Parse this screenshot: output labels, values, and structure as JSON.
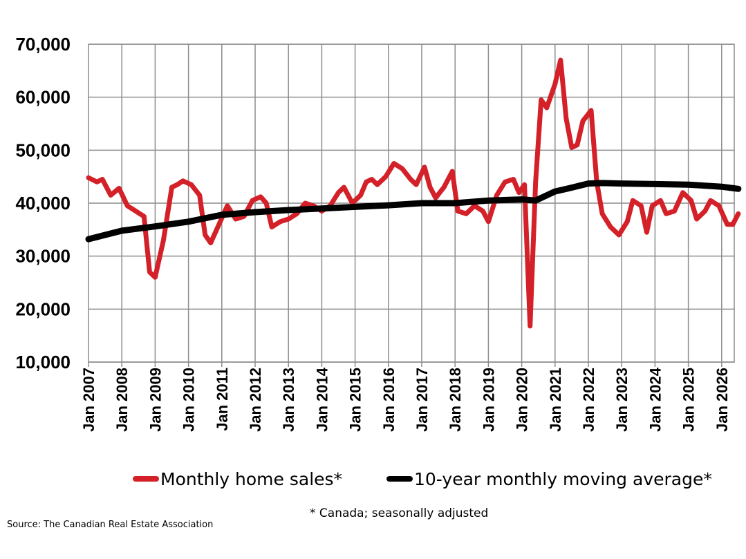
{
  "chart_data": {
    "type": "line",
    "title": "",
    "xlabel": "",
    "ylabel": "",
    "ylim": [
      10000,
      70000
    ],
    "y_ticks": [
      "10,000",
      "20,000",
      "30,000",
      "40,000",
      "50,000",
      "60,000",
      "70,000"
    ],
    "x_ticks": [
      "Jan 2007",
      "Jan 2008",
      "Jan 2009",
      "Jan 2010",
      "Jan 2011",
      "Jan 2012",
      "Jan 2013",
      "Jan 2014",
      "Jan 2015",
      "Jan 2016",
      "Jan 2017",
      "Jan 2018",
      "Jan 2019",
      "Jan 2020",
      "Jan 2021",
      "Jan 2022",
      "Jan 2023",
      "Jan 2024",
      "Jan 2025",
      "Jan 2026"
    ],
    "grid": true,
    "legend_position": "bottom",
    "series": [
      {
        "name": "Monthly home sales*",
        "color": "#d42028",
        "points": [
          [
            "2007-01",
            44800
          ],
          [
            "2007-04",
            44000
          ],
          [
            "2007-06",
            44500
          ],
          [
            "2007-09",
            41500
          ],
          [
            "2007-12",
            42800
          ],
          [
            "2008-03",
            39500
          ],
          [
            "2008-06",
            38500
          ],
          [
            "2008-09",
            37500
          ],
          [
            "2008-11",
            27000
          ],
          [
            "2009-01",
            26000
          ],
          [
            "2009-04",
            33000
          ],
          [
            "2009-07",
            43000
          ],
          [
            "2009-09",
            43500
          ],
          [
            "2009-11",
            44200
          ],
          [
            "2010-02",
            43500
          ],
          [
            "2010-05",
            41500
          ],
          [
            "2010-07",
            34000
          ],
          [
            "2010-09",
            32500
          ],
          [
            "2010-12",
            36000
          ],
          [
            "2011-03",
            39500
          ],
          [
            "2011-06",
            37000
          ],
          [
            "2011-09",
            37500
          ],
          [
            "2011-12",
            40500
          ],
          [
            "2012-03",
            41200
          ],
          [
            "2012-05",
            40000
          ],
          [
            "2012-07",
            35500
          ],
          [
            "2012-10",
            36500
          ],
          [
            "2013-01",
            37000
          ],
          [
            "2013-04",
            38000
          ],
          [
            "2013-07",
            40000
          ],
          [
            "2013-10",
            39500
          ],
          [
            "2014-01",
            38500
          ],
          [
            "2014-04",
            39500
          ],
          [
            "2014-07",
            42000
          ],
          [
            "2014-09",
            43000
          ],
          [
            "2014-12",
            40000
          ],
          [
            "2015-03",
            41500
          ],
          [
            "2015-05",
            44000
          ],
          [
            "2015-07",
            44500
          ],
          [
            "2015-09",
            43500
          ],
          [
            "2015-12",
            45000
          ],
          [
            "2016-03",
            47500
          ],
          [
            "2016-06",
            46500
          ],
          [
            "2016-09",
            44500
          ],
          [
            "2016-11",
            43500
          ],
          [
            "2017-02",
            46800
          ],
          [
            "2017-04",
            43000
          ],
          [
            "2017-06",
            41000
          ],
          [
            "2017-09",
            43000
          ],
          [
            "2017-12",
            46000
          ],
          [
            "2018-02",
            38500
          ],
          [
            "2018-05",
            38000
          ],
          [
            "2018-08",
            39500
          ],
          [
            "2018-11",
            38500
          ],
          [
            "2019-01",
            36500
          ],
          [
            "2019-04",
            41500
          ],
          [
            "2019-07",
            44000
          ],
          [
            "2019-10",
            44500
          ],
          [
            "2019-12",
            42000
          ],
          [
            "2020-02",
            43500
          ],
          [
            "2020-04",
            16800
          ],
          [
            "2020-06",
            44000
          ],
          [
            "2020-08",
            59500
          ],
          [
            "2020-10",
            58000
          ],
          [
            "2021-01",
            62500
          ],
          [
            "2021-03",
            67000
          ],
          [
            "2021-05",
            56000
          ],
          [
            "2021-07",
            50500
          ],
          [
            "2021-09",
            51000
          ],
          [
            "2021-11",
            55500
          ],
          [
            "2022-02",
            57500
          ],
          [
            "2022-04",
            44000
          ],
          [
            "2022-06",
            38000
          ],
          [
            "2022-09",
            35500
          ],
          [
            "2022-12",
            34000
          ],
          [
            "2023-03",
            36500
          ],
          [
            "2023-05",
            40500
          ],
          [
            "2023-08",
            39500
          ],
          [
            "2023-10",
            34500
          ],
          [
            "2023-12",
            39500
          ],
          [
            "2024-03",
            40500
          ],
          [
            "2024-05",
            38000
          ],
          [
            "2024-08",
            38500
          ],
          [
            "2024-11",
            42000
          ],
          [
            "2025-02",
            40500
          ],
          [
            "2025-04",
            37000
          ],
          [
            "2025-07",
            38500
          ],
          [
            "2025-09",
            40500
          ],
          [
            "2025-12",
            39500
          ],
          [
            "2026-03",
            36000
          ],
          [
            "2026-05",
            36000
          ],
          [
            "2026-07",
            38000
          ]
        ]
      },
      {
        "name": "10-year monthly moving average*",
        "color": "#000000",
        "points": [
          [
            "2007-01",
            33200
          ],
          [
            "2008-01",
            34800
          ],
          [
            "2009-01",
            35600
          ],
          [
            "2010-01",
            36500
          ],
          [
            "2011-01",
            37800
          ],
          [
            "2012-01",
            38300
          ],
          [
            "2013-01",
            38700
          ],
          [
            "2014-01",
            39000
          ],
          [
            "2015-01",
            39300
          ],
          [
            "2016-01",
            39600
          ],
          [
            "2017-01",
            40000
          ],
          [
            "2018-01",
            40000
          ],
          [
            "2019-01",
            40500
          ],
          [
            "2020-01",
            40700
          ],
          [
            "2020-06",
            40500
          ],
          [
            "2021-01",
            42200
          ],
          [
            "2021-06",
            42800
          ],
          [
            "2022-01",
            43700
          ],
          [
            "2022-06",
            43800
          ],
          [
            "2023-01",
            43700
          ],
          [
            "2024-01",
            43600
          ],
          [
            "2025-01",
            43500
          ],
          [
            "2026-01",
            43100
          ],
          [
            "2026-07",
            42700
          ]
        ]
      }
    ]
  },
  "legend": {
    "sales_label": "Monthly home sales*",
    "average_label": "10-year monthly moving average*"
  },
  "footnote": "* Canada; seasonally adjusted",
  "source": "Source: The Canadian Real Estate Association"
}
